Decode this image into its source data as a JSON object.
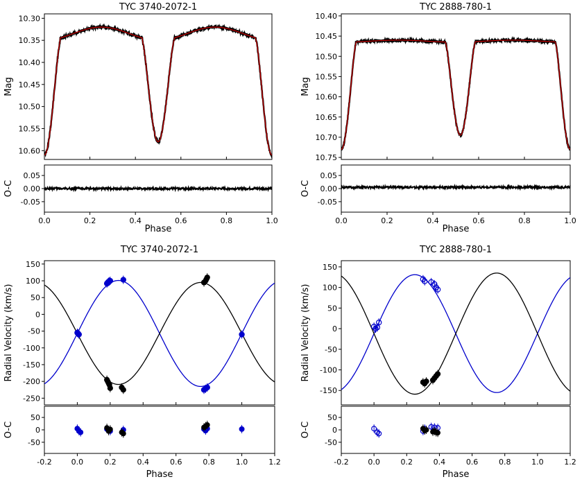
{
  "chart_data": [
    {
      "type": "scatter",
      "title": "TYC 3740-2072-1",
      "xlabel": "Phase",
      "ylabel": "Mag",
      "residual_label": "O-C",
      "xlim": [
        0.0,
        1.0
      ],
      "ylim": [
        10.62,
        10.29
      ],
      "y_inverted": true,
      "residual_ylim": [
        -0.09,
        0.09
      ],
      "x_ticks": [
        "0.0",
        "0.2",
        "0.4",
        "0.6",
        "0.8",
        "1.0"
      ],
      "y_ticks": [
        "10.30",
        "10.35",
        "10.40",
        "10.45",
        "10.50",
        "10.55",
        "10.60"
      ],
      "residual_y_ticks": [
        "0.05",
        "0.00",
        "-0.05"
      ],
      "colors": {
        "observed": "#000000",
        "model": "#cc0000"
      },
      "light_curve": {
        "max_mag": 10.32,
        "out_of_eclipse_mag": 10.35,
        "primary_min_mag": 10.58,
        "primary_min_phase": 0.5,
        "secondary_min_mag": 10.61,
        "secondary_min_phase": 0.0,
        "eclipse_half_width": 0.07
      },
      "residual_level": 0.0
    },
    {
      "type": "scatter",
      "title": "TYC 2888-780-1",
      "xlabel": "Phase",
      "ylabel": "Mag",
      "residual_label": "O-C",
      "xlim": [
        0.0,
        1.0
      ],
      "ylim": [
        10.755,
        10.395
      ],
      "y_inverted": true,
      "residual_ylim": [
        -0.09,
        0.09
      ],
      "x_ticks": [
        "0.0",
        "0.2",
        "0.4",
        "0.6",
        "0.8",
        "1.0"
      ],
      "y_ticks": [
        "10.40",
        "10.45",
        "10.50",
        "10.55",
        "10.60",
        "10.65",
        "10.70",
        "10.75"
      ],
      "residual_y_ticks": [
        "0.05",
        "0.00",
        "-0.05"
      ],
      "colors": {
        "observed": "#000000",
        "model": "#cc0000"
      },
      "light_curve": {
        "max_mag": 10.46,
        "out_of_eclipse_mag": 10.465,
        "primary_min_mag": 10.695,
        "primary_min_phase": 0.52,
        "secondary_min_mag": 10.73,
        "secondary_min_phase": 0.0,
        "eclipse_half_width": 0.065
      },
      "residual_level": 0.005
    },
    {
      "type": "scatter",
      "title": "TYC 3740-2072-1",
      "xlabel": "Phase",
      "ylabel": "Radial Velocity (km/s)",
      "residual_label": "O-C",
      "xlim": [
        -0.2,
        1.2
      ],
      "ylim": [
        -270,
        160
      ],
      "residual_ylim": [
        -95,
        95
      ],
      "x_ticks": [
        "-0.2",
        "0.0",
        "0.2",
        "0.4",
        "0.6",
        "0.8",
        "1.0",
        "1.2"
      ],
      "y_ticks": [
        "150",
        "100",
        "50",
        "0",
        "-50",
        "-100",
        "-150",
        "-200",
        "-250"
      ],
      "residual_y_ticks": [
        "50",
        "0",
        "-50"
      ],
      "colors": {
        "primary": "#0000cc",
        "secondary": "#000000"
      },
      "rv_curves": {
        "gamma": -57,
        "primary_K": 158,
        "secondary_K": 152,
        "primary_peak_phase": 0.25
      },
      "primary_points": [
        {
          "phase": 0.0,
          "rv": -55
        },
        {
          "phase": 0.005,
          "rv": -57
        },
        {
          "phase": 0.01,
          "rv": -60
        },
        {
          "phase": 0.18,
          "rv": 92
        },
        {
          "phase": 0.185,
          "rv": 95
        },
        {
          "phase": 0.19,
          "rv": 97
        },
        {
          "phase": 0.195,
          "rv": 98
        },
        {
          "phase": 0.2,
          "rv": 100
        },
        {
          "phase": 0.28,
          "rv": 103
        },
        {
          "phase": 0.77,
          "rv": -225
        },
        {
          "phase": 0.78,
          "rv": -222
        },
        {
          "phase": 0.79,
          "rv": -218
        },
        {
          "phase": 1.0,
          "rv": -60
        }
      ],
      "secondary_points": [
        {
          "phase": 0.18,
          "rv": -195
        },
        {
          "phase": 0.185,
          "rv": -200
        },
        {
          "phase": 0.19,
          "rv": -205
        },
        {
          "phase": 0.195,
          "rv": -210
        },
        {
          "phase": 0.2,
          "rv": -220
        },
        {
          "phase": 0.27,
          "rv": -218
        },
        {
          "phase": 0.28,
          "rv": -225
        },
        {
          "phase": 0.77,
          "rv": 95
        },
        {
          "phase": 0.78,
          "rv": 100
        },
        {
          "phase": 0.785,
          "rv": 105
        },
        {
          "phase": 0.79,
          "rv": 110
        }
      ],
      "primary_residuals": [
        {
          "phase": 0.0,
          "oc": 5
        },
        {
          "phase": 0.01,
          "oc": -5
        },
        {
          "phase": 0.02,
          "oc": -10
        },
        {
          "phase": 0.18,
          "oc": 3
        },
        {
          "phase": 0.19,
          "oc": -2
        },
        {
          "phase": 0.2,
          "oc": -5
        },
        {
          "phase": 0.28,
          "oc": 0
        },
        {
          "phase": 0.77,
          "oc": 3
        },
        {
          "phase": 0.78,
          "oc": -3
        },
        {
          "phase": 0.79,
          "oc": 5
        },
        {
          "phase": 1.0,
          "oc": 3
        }
      ],
      "secondary_residuals": [
        {
          "phase": 0.18,
          "oc": 8
        },
        {
          "phase": 0.19,
          "oc": -5
        },
        {
          "phase": 0.2,
          "oc": 2
        },
        {
          "phase": 0.27,
          "oc": -10
        },
        {
          "phase": 0.28,
          "oc": -15
        },
        {
          "phase": 0.77,
          "oc": 10
        },
        {
          "phase": 0.78,
          "oc": 15
        },
        {
          "phase": 0.79,
          "oc": 20
        }
      ]
    },
    {
      "type": "scatter",
      "title": "TYC 2888-780-1",
      "xlabel": "Phase",
      "ylabel": "Radial Velocity (km/s)",
      "residual_label": "O-C",
      "xlim": [
        -0.2,
        1.2
      ],
      "ylim": [
        -185,
        165
      ],
      "residual_ylim": [
        -95,
        95
      ],
      "x_ticks": [
        "-0.2",
        "0.0",
        "0.2",
        "0.4",
        "0.6",
        "0.8",
        "1.0",
        "1.2"
      ],
      "y_ticks": [
        "150",
        "100",
        "50",
        "0",
        "-50",
        "-100",
        "-150"
      ],
      "residual_y_ticks": [
        "50",
        "0",
        "-50"
      ],
      "colors": {
        "primary": "#0000cc",
        "secondary": "#000000"
      },
      "rv_curves": {
        "gamma": -12,
        "primary_K": 143,
        "secondary_K": 147,
        "primary_peak_phase": 0.25
      },
      "primary_points": [
        {
          "phase": 0.0,
          "rv": 5
        },
        {
          "phase": 0.01,
          "rv": 0
        },
        {
          "phase": 0.02,
          "rv": 3
        },
        {
          "phase": 0.03,
          "rv": 15
        },
        {
          "phase": 0.3,
          "rv": 120
        },
        {
          "phase": 0.31,
          "rv": 115
        },
        {
          "phase": 0.35,
          "rv": 113
        },
        {
          "phase": 0.37,
          "rv": 108
        },
        {
          "phase": 0.38,
          "rv": 100
        },
        {
          "phase": 0.39,
          "rv": 95
        }
      ],
      "secondary_points": [
        {
          "phase": 0.3,
          "rv": -130
        },
        {
          "phase": 0.31,
          "rv": -133
        },
        {
          "phase": 0.32,
          "rv": -128
        },
        {
          "phase": 0.36,
          "rv": -125
        },
        {
          "phase": 0.37,
          "rv": -120
        },
        {
          "phase": 0.38,
          "rv": -115
        },
        {
          "phase": 0.39,
          "rv": -110
        }
      ],
      "primary_residuals": [
        {
          "phase": 0.0,
          "oc": 5
        },
        {
          "phase": 0.02,
          "oc": -10
        },
        {
          "phase": 0.03,
          "oc": -15
        },
        {
          "phase": 0.3,
          "oc": -5
        },
        {
          "phase": 0.31,
          "oc": 5
        },
        {
          "phase": 0.35,
          "oc": 12
        },
        {
          "phase": 0.37,
          "oc": 10
        },
        {
          "phase": 0.39,
          "oc": 8
        }
      ],
      "secondary_residuals": [
        {
          "phase": 0.3,
          "oc": 5
        },
        {
          "phase": 0.31,
          "oc": -3
        },
        {
          "phase": 0.32,
          "oc": 0
        },
        {
          "phase": 0.36,
          "oc": -8
        },
        {
          "phase": 0.37,
          "oc": -5
        },
        {
          "phase": 0.38,
          "oc": -10
        },
        {
          "phase": 0.39,
          "oc": -12
        }
      ]
    }
  ]
}
